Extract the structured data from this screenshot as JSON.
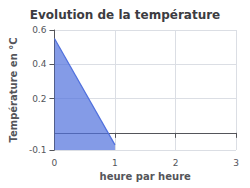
{
  "chart_data": {
    "type": "area",
    "title": "Evolution de la température",
    "xlabel": "heure par heure",
    "ylabel": "Température en °C",
    "x": [
      0,
      1
    ],
    "values": [
      0.55,
      -0.07
    ],
    "xlim": [
      0,
      3
    ],
    "ylim": [
      -0.1,
      0.6
    ],
    "xticks": [
      0,
      1,
      2,
      3
    ],
    "yticks": [
      -0.1,
      0.2,
      0.4,
      0.6
    ],
    "grid": true
  }
}
